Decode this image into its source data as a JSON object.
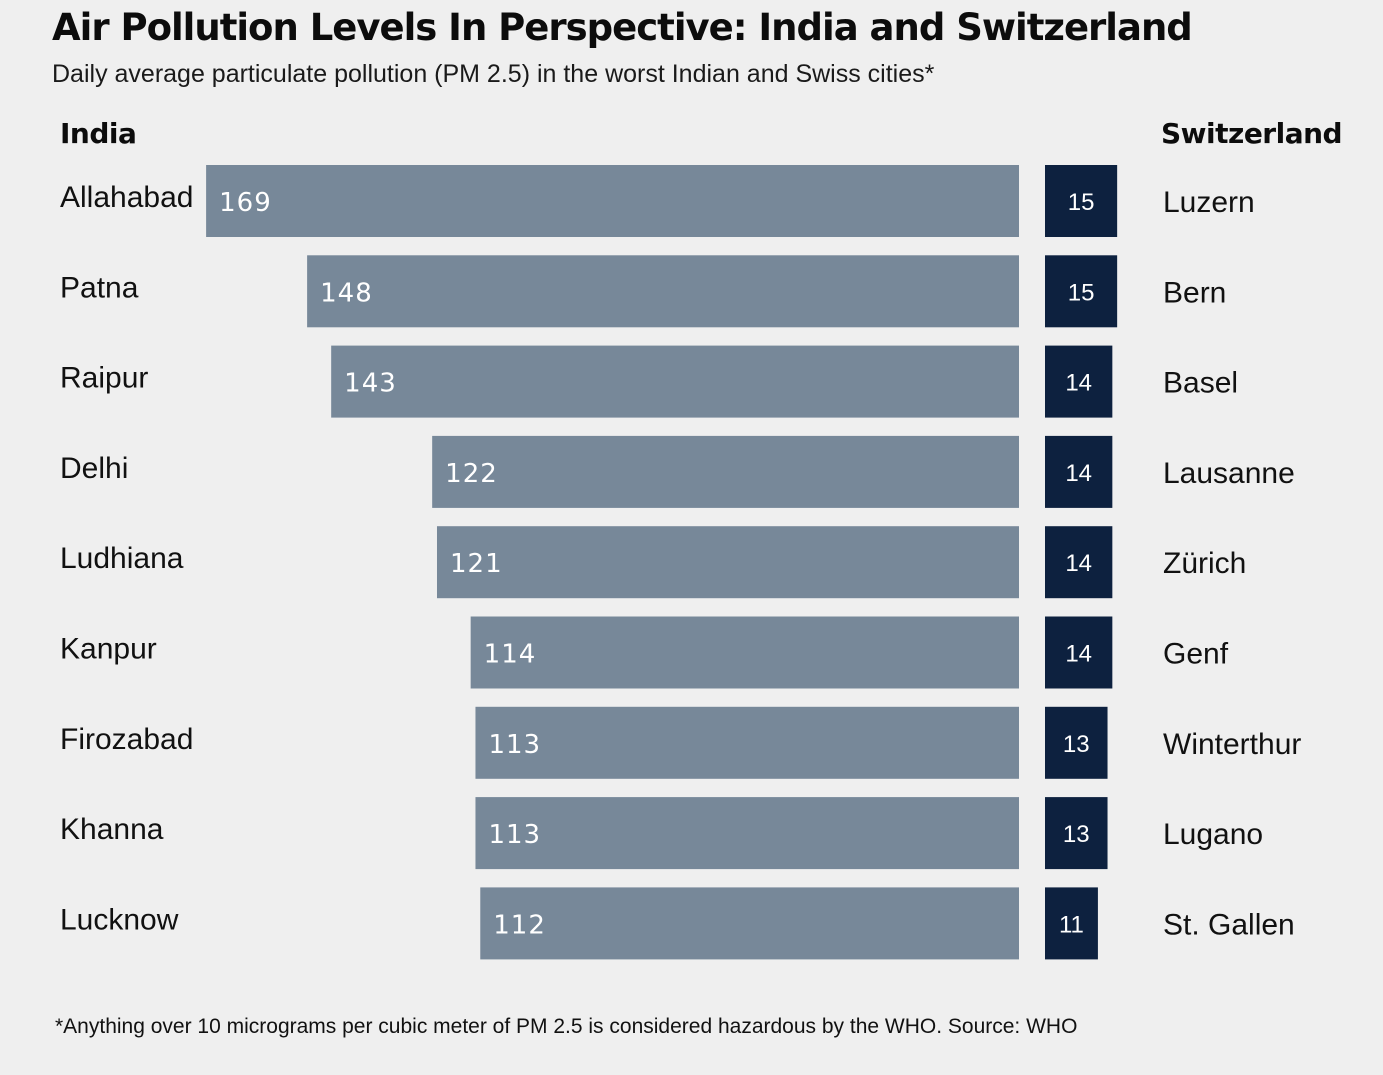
{
  "title": "Air Pollution Levels In Perspective: India and Switzerland",
  "subtitle": "Daily average particulate pollution (PM 2.5) in the worst Indian and Swiss cities*",
  "footnote": "*Anything over 10 micrograms per cubic meter of PM 2.5 is considered hazardous by the WHO. Source: WHO",
  "colors": {
    "india_bar": "#778899",
    "swiss_bar": "#0d213f",
    "background": "#efefef"
  },
  "chart_data": {
    "type": "bar",
    "orientation": "horizontal",
    "groups": [
      {
        "name": "India",
        "categories": [
          "Allahabad",
          "Patna",
          "Raipur",
          "Delhi",
          "Ludhiana",
          "Kanpur",
          "Firozabad",
          "Khanna",
          "Lucknow"
        ],
        "values": [
          169,
          148,
          143,
          122,
          121,
          114,
          113,
          113,
          112
        ],
        "direction": "extends left"
      },
      {
        "name": "Switzerland",
        "categories": [
          "Luzern",
          "Bern",
          "Basel",
          "Lausanne",
          "Zürich",
          "Genf",
          "Winterthur",
          "Lugano",
          "St. Gallen"
        ],
        "values": [
          15,
          15,
          14,
          14,
          14,
          14,
          13,
          13,
          11
        ],
        "direction": "extends right"
      }
    ],
    "data_labels": true,
    "grid": false
  }
}
